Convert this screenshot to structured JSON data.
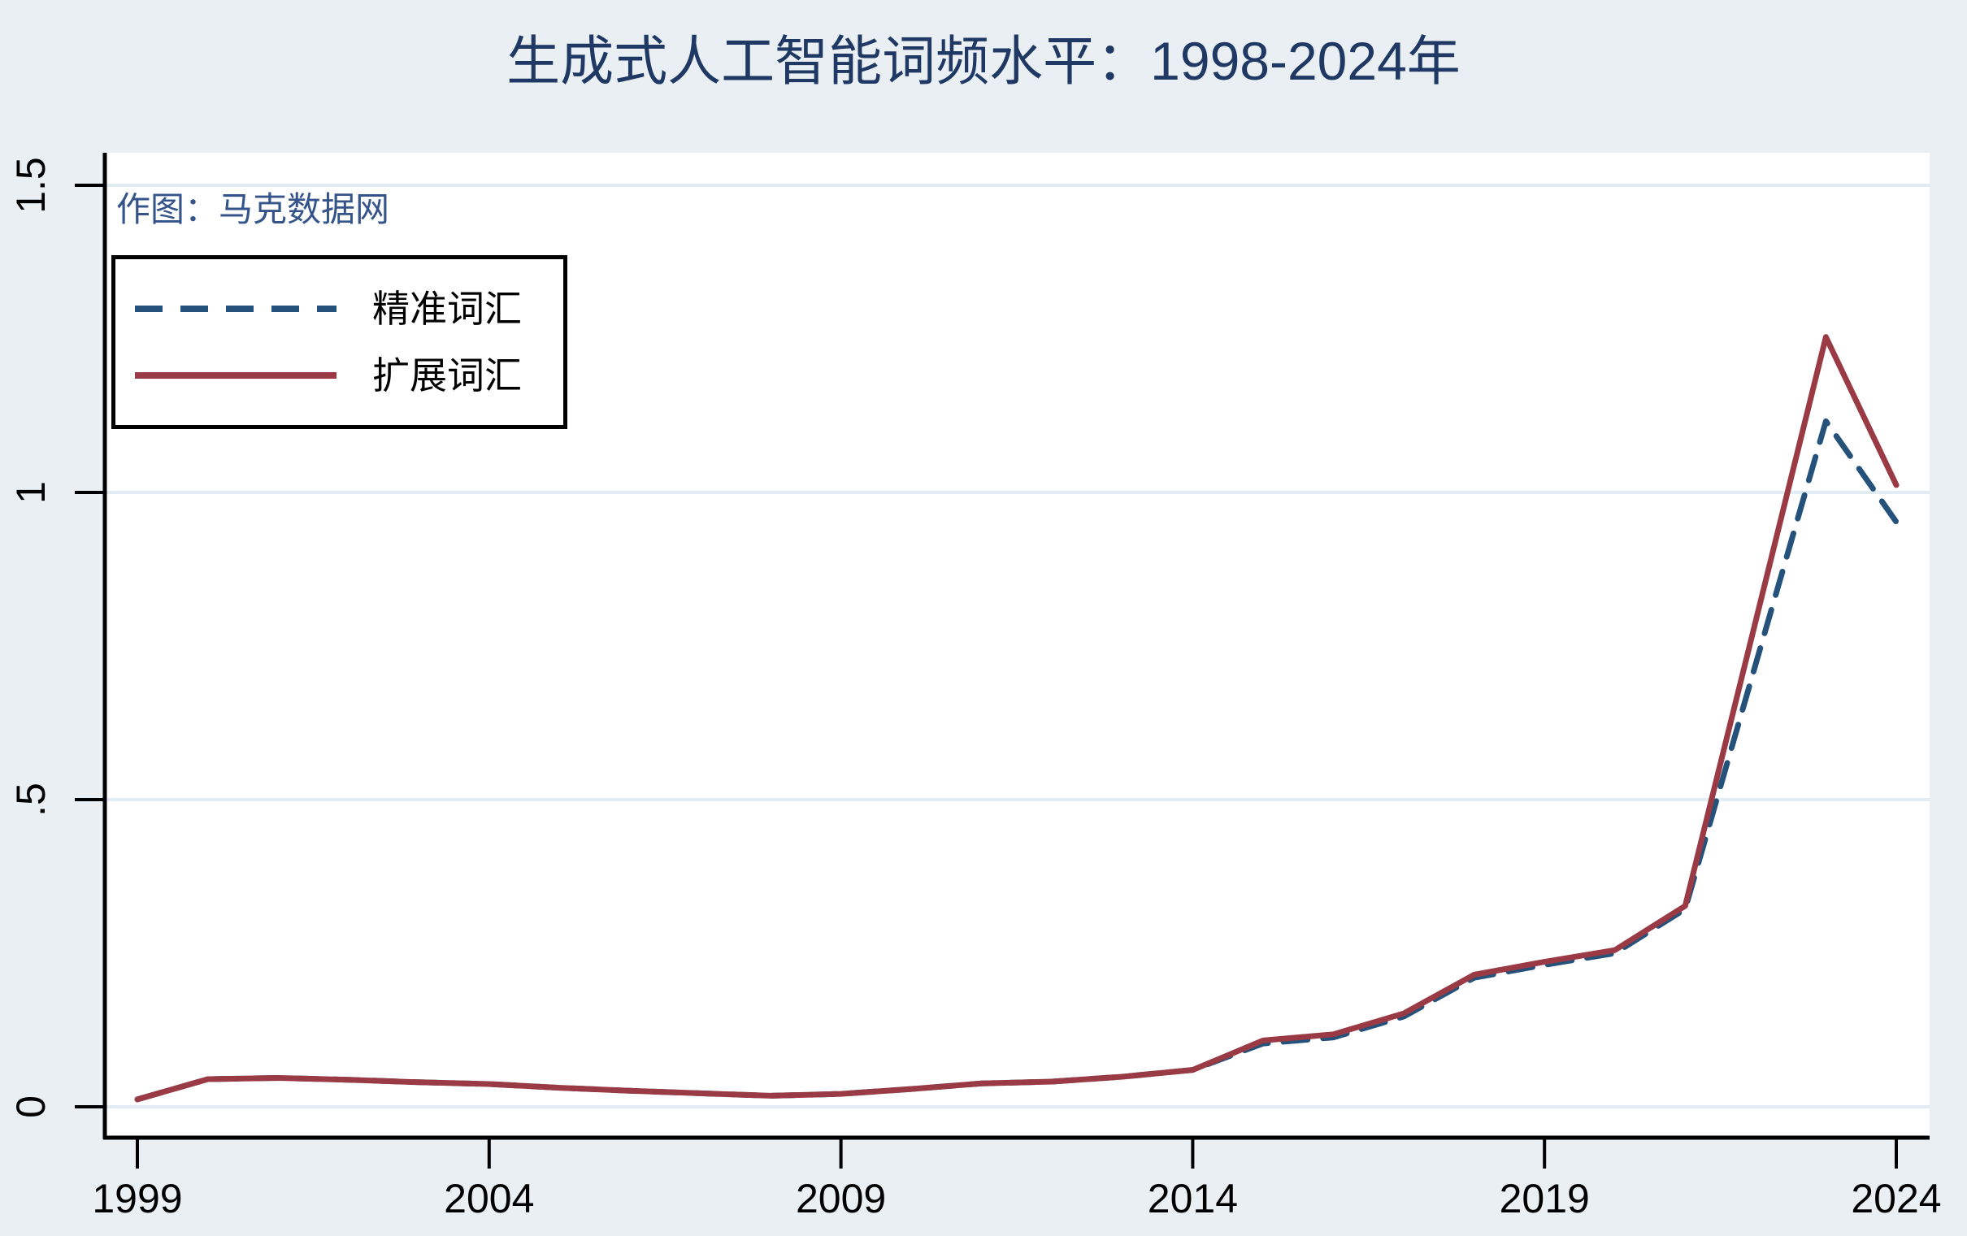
{
  "title": "生成式人工智能词频水平：1998-2024年",
  "note": "作图：马克数据网",
  "colors": {
    "background": "#E9EFF3",
    "plot_background": "#FFFFFF",
    "gridline": "#E2EDF3",
    "axis": "#000000",
    "title_text": "#1F3864",
    "note_text": "#35548A",
    "tick_label_text": "#000000",
    "series_precise": "#25527B",
    "series_expanded": "#9A3A44"
  },
  "chart_data": {
    "type": "line",
    "title": "生成式人工智能词频水平：1998-2024年",
    "xlabel": "",
    "ylabel": "",
    "x": [
      1999,
      2000,
      2001,
      2002,
      2003,
      2004,
      2005,
      2006,
      2007,
      2008,
      2009,
      2010,
      2011,
      2012,
      2013,
      2014,
      2015,
      2016,
      2017,
      2018,
      2019,
      2020,
      2021,
      2022,
      2023,
      2024
    ],
    "series": [
      {
        "key": "precise-terms",
        "name": "精准词汇",
        "style": "dashed",
        "color": "#25527B",
        "values": [
          0.012,
          0.045,
          0.047,
          0.044,
          0.04,
          0.037,
          0.031,
          0.026,
          0.022,
          0.018,
          0.021,
          0.029,
          0.038,
          0.041,
          0.049,
          0.06,
          0.103,
          0.113,
          0.147,
          0.21,
          0.231,
          0.25,
          0.322,
          0.72,
          1.116,
          0.952
        ]
      },
      {
        "key": "expanded-terms",
        "name": "扩展词汇",
        "style": "solid",
        "color": "#9A3A44",
        "values": [
          0.012,
          0.045,
          0.047,
          0.044,
          0.04,
          0.037,
          0.031,
          0.026,
          0.022,
          0.018,
          0.021,
          0.029,
          0.038,
          0.041,
          0.049,
          0.06,
          0.108,
          0.118,
          0.152,
          0.215,
          0.236,
          0.255,
          0.327,
          0.79,
          1.253,
          1.012
        ]
      }
    ],
    "x_ticks": [
      1999,
      2004,
      2009,
      2014,
      2019,
      2024
    ],
    "y_ticks": [
      {
        "value": 0,
        "label": "0"
      },
      {
        "value": 0.5,
        "label": ".5"
      },
      {
        "value": 1,
        "label": "1"
      },
      {
        "value": 1.5,
        "label": "1.5"
      }
    ],
    "xlim": [
      1998.5,
      2024.5
    ],
    "ylim": [
      -0.055,
      1.555
    ],
    "grid": true,
    "legend_position": "top-left"
  }
}
